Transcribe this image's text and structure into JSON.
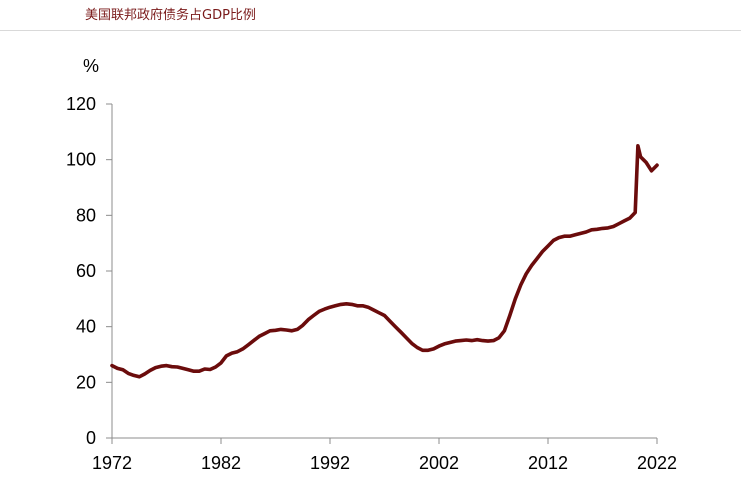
{
  "title": "美国联邦政府债务占GDP比例",
  "chart_data": {
    "type": "line",
    "title": "美国联邦政府债务占GDP比例",
    "ylabel": "%",
    "xlabel": "",
    "xlim": [
      1972,
      2022
    ],
    "ylim": [
      0,
      120
    ],
    "x_ticks": [
      "1972",
      "1982",
      "1992",
      "2002",
      "2012",
      "2022"
    ],
    "y_ticks": [
      "0",
      "20",
      "40",
      "60",
      "80",
      "100",
      "120"
    ],
    "grid": false,
    "line_color": "#6b0c0c",
    "series": [
      {
        "x": [
          1972.0,
          1972.5,
          1973.0,
          1973.5,
          1974.0,
          1974.5,
          1975.0,
          1975.5,
          1976.0,
          1976.5,
          1977.0,
          1977.5,
          1978.0,
          1978.5,
          1979.0,
          1979.5,
          1980.0,
          1980.5,
          1981.0,
          1981.5,
          1982.0,
          1982.5,
          1983.0,
          1983.5,
          1984.0,
          1984.5,
          1985.0,
          1985.5,
          1986.0,
          1986.5,
          1987.0,
          1987.5,
          1988.0,
          1988.5,
          1989.0,
          1989.5,
          1990.0,
          1990.5,
          1991.0,
          1991.5,
          1992.0,
          1992.5,
          1993.0,
          1993.5,
          1994.0,
          1994.5,
          1995.0,
          1995.5,
          1996.0,
          1996.5,
          1997.0,
          1997.5,
          1998.0,
          1998.5,
          1999.0,
          1999.5,
          2000.0,
          2000.5,
          2001.0,
          2001.5,
          2002.0,
          2002.5,
          2003.0,
          2003.5,
          2004.0,
          2004.5,
          2005.0,
          2005.5,
          2006.0,
          2006.5,
          2007.0,
          2007.5,
          2008.0,
          2008.5,
          2009.0,
          2009.5,
          2010.0,
          2010.5,
          2011.0,
          2011.5,
          2012.0,
          2012.5,
          2013.0,
          2013.5,
          2014.0,
          2014.5,
          2015.0,
          2015.5,
          2016.0,
          2016.5,
          2017.0,
          2017.5,
          2018.0,
          2018.5,
          2019.0,
          2019.5,
          2020.0,
          2020.25,
          2020.5,
          2020.75,
          2021.0,
          2021.5,
          2022.0
        ],
        "values": [
          26,
          25,
          24.5,
          23.2,
          22.5,
          22,
          23,
          24.3,
          25.3,
          25.8,
          26,
          25.6,
          25.5,
          25,
          24.5,
          24,
          24,
          24.8,
          24.6,
          25.5,
          27,
          29.5,
          30.5,
          31,
          32,
          33.5,
          35,
          36.5,
          37.5,
          38.5,
          38.7,
          39,
          38.8,
          38.5,
          39,
          40.5,
          42.5,
          44,
          45.5,
          46.3,
          47,
          47.5,
          48,
          48.2,
          48,
          47.5,
          47.5,
          47,
          46,
          45,
          44,
          42,
          40,
          38,
          36,
          34,
          32.5,
          31.5,
          31.5,
          32,
          33,
          33.8,
          34.3,
          34.8,
          35,
          35.2,
          35,
          35.3,
          35,
          34.8,
          35,
          36,
          38.5,
          44,
          50,
          55,
          59,
          62,
          64.5,
          67,
          69,
          71,
          72,
          72.5,
          72.5,
          73,
          73.5,
          74,
          74.8,
          75,
          75.3,
          75.5,
          76,
          77,
          78,
          79,
          81,
          105,
          101,
          100,
          99,
          96,
          98
        ]
      }
    ]
  }
}
